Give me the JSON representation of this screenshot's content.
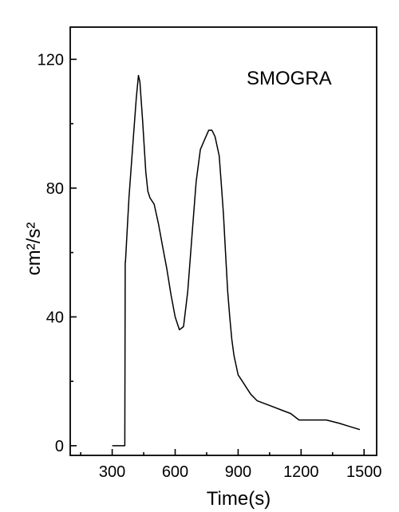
{
  "chart_data": {
    "type": "line",
    "title": "",
    "xlabel": "Time(s)",
    "ylabel": "cm²/s²",
    "annotation": "SMOGRA",
    "xlim": [
      100,
      1560
    ],
    "ylim": [
      -3,
      130
    ],
    "xticks": [
      300,
      600,
      900,
      1200,
      1500
    ],
    "yticks": [
      0,
      40,
      80,
      120
    ],
    "grid": false,
    "legend": "none",
    "series": [
      {
        "x": [
          300,
          360,
          362,
          363,
          380,
          400,
          415,
          425,
          432,
          445,
          460,
          470,
          480,
          500,
          520,
          540,
          560,
          580,
          600,
          620,
          640,
          660,
          680,
          700,
          720,
          740,
          760,
          775,
          790,
          810,
          820,
          830,
          840,
          850,
          860,
          870,
          880,
          890,
          900,
          920,
          940,
          960,
          990,
          1030,
          1070,
          1110,
          1150,
          1190,
          1260,
          1320,
          1380,
          1430,
          1480
        ],
        "y": [
          0,
          0,
          57,
          57,
          77,
          95,
          108,
          115,
          113,
          101,
          85,
          79,
          77,
          75,
          69,
          62,
          55,
          47,
          40,
          36,
          37,
          48,
          65,
          82,
          92,
          95,
          98,
          98,
          96,
          90,
          81,
          72,
          60,
          48,
          40,
          33,
          28,
          25,
          22,
          20,
          18,
          16,
          14,
          13,
          12,
          11,
          10,
          8,
          8,
          8,
          7,
          6,
          5
        ]
      }
    ]
  }
}
